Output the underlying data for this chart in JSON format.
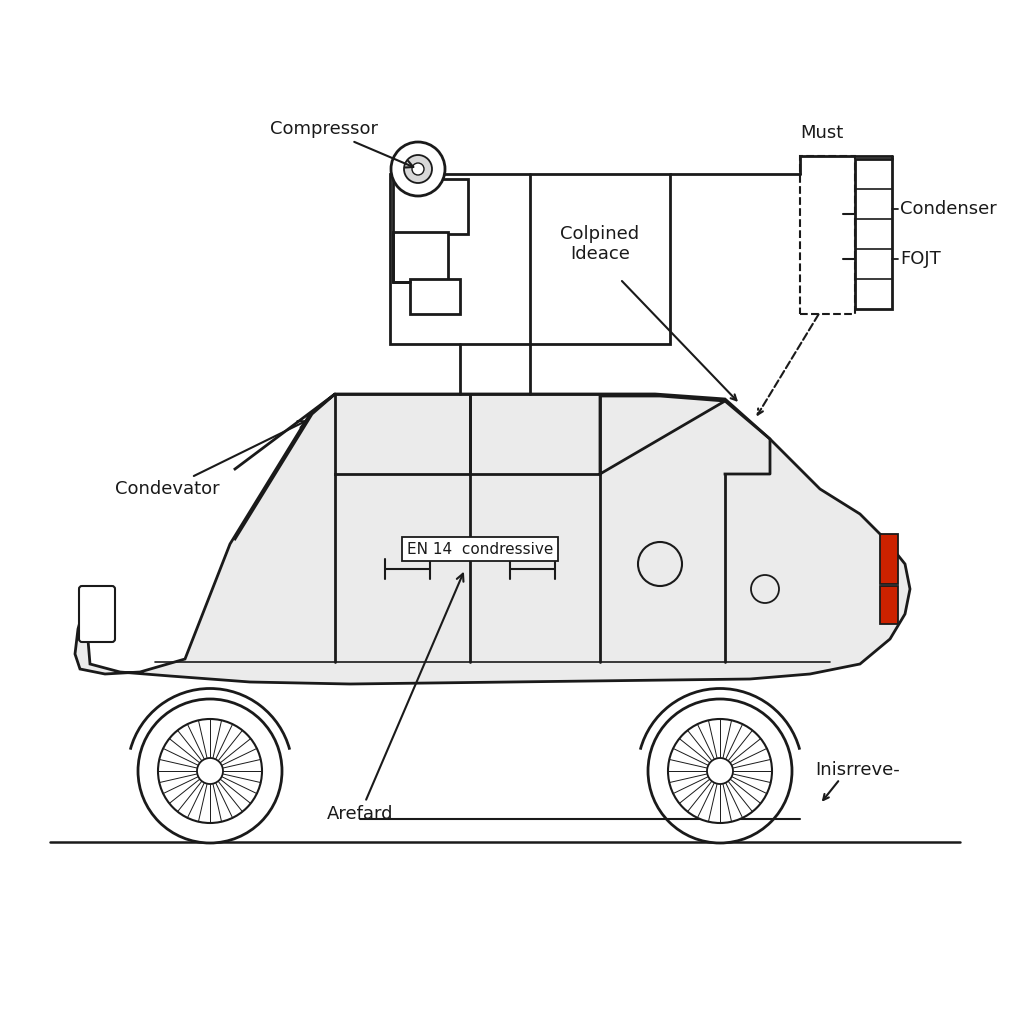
{
  "background_color": "#ffffff",
  "labels": {
    "compressor": "Compressor",
    "condevator": "Condevator",
    "colpined_ideace": "Colpined\nIdeace",
    "must": "Must",
    "condenser": "Condenser",
    "fojt": "FOJT",
    "arefard": "Arefard",
    "inisrreve": "Inisrreve-",
    "en14": "EN 14  condressive"
  },
  "line_color": "#1a1a1a",
  "red_color": "#cc2200",
  "text_color": "#1a1a1a",
  "car_fill": "#ebebeb"
}
